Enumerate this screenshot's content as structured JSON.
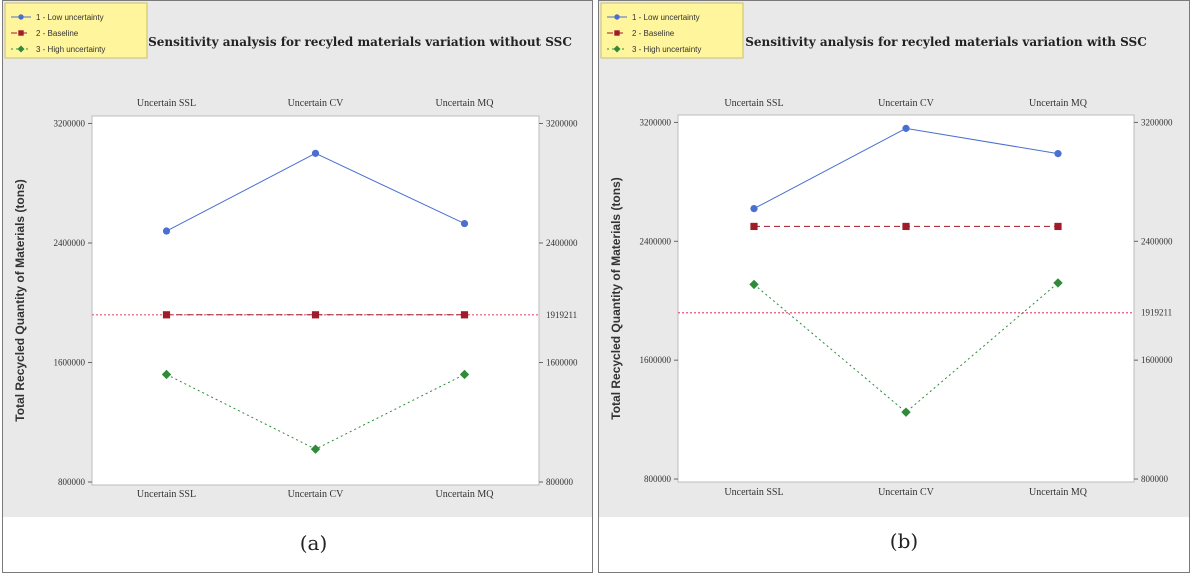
{
  "chart_data": [
    {
      "type": "line",
      "title": "Sensitivity analysis for recyled materials variation without SSC",
      "panel_label": "(a)",
      "ylabel": "Total Recycled Quantity of Materials (tons)",
      "categories": [
        "Uncertain SSL",
        "Uncertain CV",
        "Uncertain MQ"
      ],
      "top_tick_labels": [
        "Uncertain SSL",
        "Uncertain CV",
        "Uncertain MQ"
      ],
      "bottom_tick_labels": [
        "Uncertain SSL",
        "Uncertain CV",
        "Uncertain MQ"
      ],
      "y_ticks": [
        800000,
        1600000,
        2400000,
        3200000
      ],
      "y_tick_labels": [
        "800000",
        "1600000",
        "2400000",
        "3200000"
      ],
      "ylim": [
        780000,
        3250000
      ],
      "reference_line": {
        "value": 1919211,
        "label": "1919211"
      },
      "legend_position": "top-left",
      "series": [
        {
          "name": "1 - Low uncertainty",
          "values": [
            2480000,
            3000000,
            2530000
          ]
        },
        {
          "name": "2 - Baseline",
          "values": [
            1919211,
            1919211,
            1919211
          ]
        },
        {
          "name": "3 - High uncertainty",
          "values": [
            1520000,
            1020000,
            1520000
          ]
        }
      ]
    },
    {
      "type": "line",
      "title": "Sensitivity analysis for recyled materials variation with SSC",
      "panel_label": "(b)",
      "ylabel": "Total Recycled Quantity of Materials (tons)",
      "categories": [
        "Uncertain SSL",
        "Uncertain CV",
        "Uncertain MQ"
      ],
      "top_tick_labels": [
        "Uncertain SSL",
        "Uncertain CV",
        "Uncertain MQ"
      ],
      "bottom_tick_labels": [
        "Uncertain SSL",
        "Uncertain CV",
        "Uncertain MQ"
      ],
      "y_ticks": [
        800000,
        1600000,
        2400000,
        3200000
      ],
      "y_tick_labels": [
        "800000",
        "1600000",
        "2400000",
        "3200000"
      ],
      "ylim": [
        780000,
        3250000
      ],
      "reference_line": {
        "value": 1919211,
        "label": "1919211"
      },
      "legend_position": "top-left",
      "series": [
        {
          "name": "1 - Low uncertainty",
          "values": [
            2620000,
            3160000,
            2990000
          ]
        },
        {
          "name": "2 - Baseline",
          "values": [
            2500000,
            2500000,
            2500000
          ]
        },
        {
          "name": "3 - High uncertainty",
          "values": [
            2110000,
            1250000,
            2120000
          ]
        }
      ]
    }
  ],
  "colors": {
    "low": "#4a6fd0",
    "baseline": "#a01c28",
    "high": "#2f8a3a",
    "reference": "#e8557a",
    "legend_bg": "#fff59d",
    "panel_bg": "#e9e9e9"
  }
}
